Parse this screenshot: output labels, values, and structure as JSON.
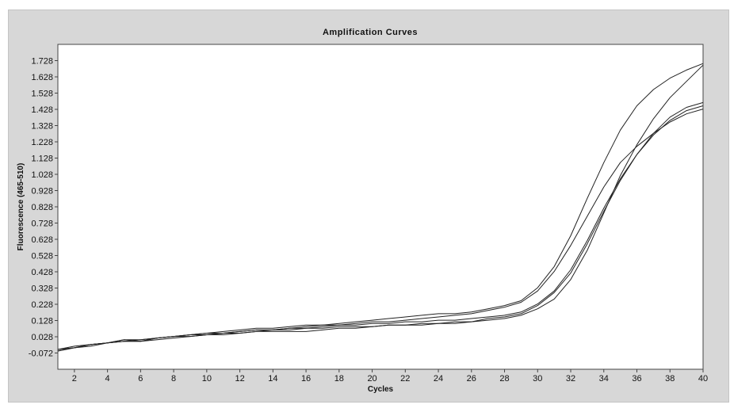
{
  "chart_data": {
    "type": "line",
    "title": "Amplification Curves",
    "xlabel": "Cycles",
    "ylabel": "Fluorescence (465-510)",
    "xlim": [
      1,
      40
    ],
    "ylim": [
      -0.172,
      1.828
    ],
    "x_ticks": [
      2,
      4,
      6,
      8,
      10,
      12,
      14,
      16,
      18,
      20,
      22,
      24,
      26,
      28,
      30,
      32,
      34,
      36,
      38,
      40
    ],
    "y_ticks": [
      -0.072,
      0.028,
      0.128,
      0.228,
      0.328,
      0.428,
      0.528,
      0.628,
      0.728,
      0.828,
      0.928,
      1.028,
      1.128,
      1.228,
      1.328,
      1.428,
      1.528,
      1.628,
      1.728
    ],
    "y_tick_labels": [
      "-0.072",
      "0.028",
      "0.128",
      "0.228",
      "0.328",
      "0.428",
      "0.528",
      "0.628",
      "0.728",
      "0.828",
      "0.928",
      "1.028",
      "1.128",
      "1.228",
      "1.328",
      "1.428",
      "1.528",
      "1.628",
      "1.728"
    ],
    "grid": false,
    "line_color": "#222222",
    "plot_background": "#ffffff",
    "x": [
      1,
      2,
      3,
      4,
      5,
      6,
      7,
      8,
      9,
      10,
      11,
      12,
      13,
      14,
      15,
      16,
      17,
      18,
      19,
      20,
      21,
      22,
      23,
      24,
      25,
      26,
      27,
      28,
      29,
      30,
      31,
      32,
      33,
      34,
      35,
      36,
      37,
      38,
      39,
      40
    ],
    "series": [
      {
        "values": [
          -0.06,
          -0.04,
          -0.02,
          -0.01,
          0.01,
          0.0,
          0.02,
          0.03,
          0.04,
          0.05,
          0.06,
          0.07,
          0.08,
          0.08,
          0.09,
          0.1,
          0.1,
          0.11,
          0.12,
          0.13,
          0.14,
          0.15,
          0.16,
          0.17,
          0.17,
          0.18,
          0.2,
          0.22,
          0.25,
          0.33,
          0.46,
          0.65,
          0.88,
          1.1,
          1.3,
          1.45,
          1.55,
          1.62,
          1.67,
          1.71
        ]
      },
      {
        "values": [
          -0.05,
          -0.04,
          -0.02,
          -0.01,
          0.0,
          0.01,
          0.02,
          0.03,
          0.04,
          0.04,
          0.05,
          0.06,
          0.07,
          0.07,
          0.08,
          0.09,
          0.1,
          0.1,
          0.11,
          0.12,
          0.12,
          0.13,
          0.14,
          0.15,
          0.16,
          0.17,
          0.19,
          0.21,
          0.24,
          0.31,
          0.43,
          0.59,
          0.77,
          0.95,
          1.1,
          1.2,
          1.28,
          1.35,
          1.4,
          1.43
        ]
      },
      {
        "values": [
          -0.06,
          -0.04,
          -0.03,
          -0.01,
          0.01,
          0.01,
          0.02,
          0.03,
          0.03,
          0.04,
          0.05,
          0.05,
          0.06,
          0.06,
          0.06,
          0.06,
          0.07,
          0.08,
          0.08,
          0.09,
          0.1,
          0.1,
          0.1,
          0.11,
          0.11,
          0.12,
          0.13,
          0.14,
          0.16,
          0.2,
          0.26,
          0.38,
          0.56,
          0.79,
          1.02,
          1.21,
          1.37,
          1.5,
          1.6,
          1.7
        ]
      },
      {
        "values": [
          -0.05,
          -0.03,
          -0.02,
          -0.01,
          0.0,
          0.0,
          0.01,
          0.02,
          0.03,
          0.04,
          0.04,
          0.05,
          0.06,
          0.07,
          0.07,
          0.08,
          0.08,
          0.09,
          0.09,
          0.09,
          0.1,
          0.1,
          0.11,
          0.11,
          0.12,
          0.12,
          0.14,
          0.15,
          0.17,
          0.22,
          0.3,
          0.42,
          0.6,
          0.8,
          0.99,
          1.15,
          1.28,
          1.38,
          1.44,
          1.47
        ]
      },
      {
        "values": [
          -0.05,
          -0.04,
          -0.02,
          -0.01,
          0.0,
          0.0,
          0.02,
          0.03,
          0.04,
          0.05,
          0.05,
          0.06,
          0.07,
          0.07,
          0.08,
          0.08,
          0.09,
          0.1,
          0.1,
          0.11,
          0.11,
          0.12,
          0.12,
          0.13,
          0.13,
          0.14,
          0.15,
          0.16,
          0.18,
          0.23,
          0.31,
          0.44,
          0.62,
          0.82,
          1.0,
          1.15,
          1.27,
          1.36,
          1.42,
          1.45
        ]
      }
    ]
  }
}
